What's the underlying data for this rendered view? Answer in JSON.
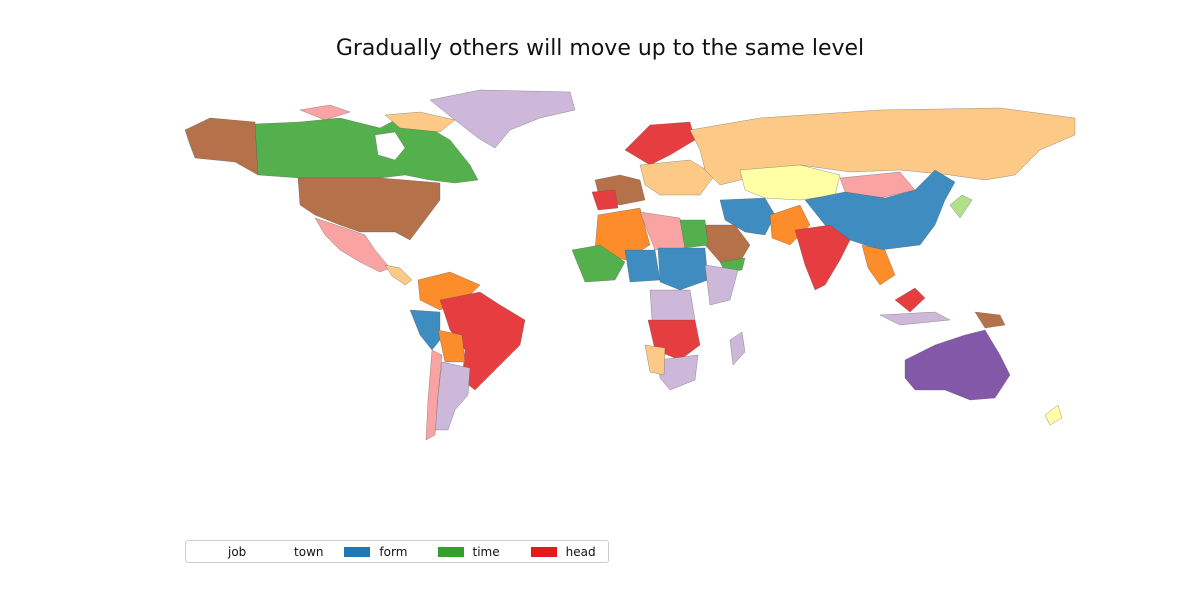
{
  "title": "Gradually others will move up to the same level",
  "legend": [
    {
      "label": "job",
      "color": "#ffffff"
    },
    {
      "label": "town",
      "color": "#ffffff"
    },
    {
      "label": "form",
      "color": "#1f78b4"
    },
    {
      "label": "time",
      "color": "#33a02c"
    },
    {
      "label": "head",
      "color": "#e31a1c"
    }
  ],
  "palette": {
    "brown": "#b5714a",
    "green": "#53b04c",
    "lavender": "#cdb8da",
    "orange_light": "#fdc987",
    "pink": "#f9a3a3",
    "red": "#e63e40",
    "blue": "#3f8cc0",
    "orange": "#fd8c2a",
    "yellow": "#ffffa6",
    "purple": "#8458a9",
    "green_light": "#b2df8a",
    "dark_green": "#3aa23a"
  }
}
